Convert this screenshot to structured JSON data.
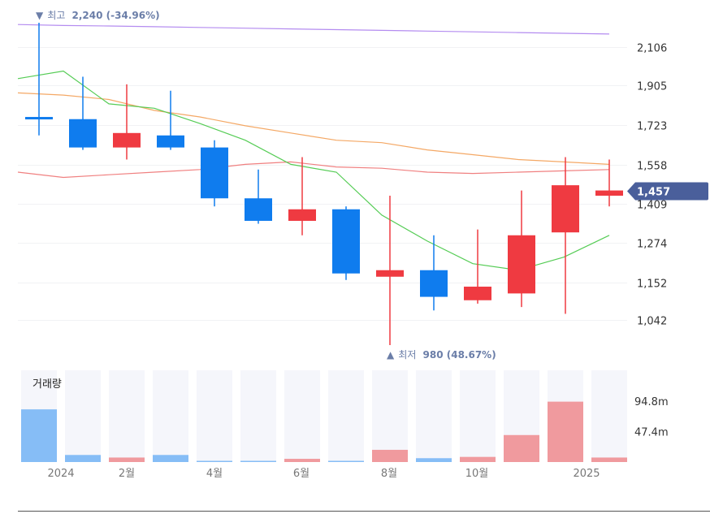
{
  "chart_data": {
    "type": "candlestick",
    "x_labels": [
      "2024",
      "2월",
      "4월",
      "6월",
      "8월",
      "10월",
      "2025"
    ],
    "y_ticks": [
      "2,106",
      "1,905",
      "1,723",
      "1,558",
      "1,409",
      "1,274",
      "1,152",
      "1,042"
    ],
    "y_tick_values": [
      2106,
      1905,
      1723,
      1558,
      1409,
      1274,
      1152,
      1042
    ],
    "volume_ticks": [
      "94.8m",
      "47.4m"
    ],
    "volume_tick_values": [
      94.8,
      47.4
    ],
    "volume_unit": "m",
    "volume_title": "거래량",
    "high_annotation": {
      "prefix": "▼",
      "label": "최고",
      "value": "2,240 (-34.96%)",
      "price": 2240
    },
    "low_annotation": {
      "prefix": "▲",
      "label": "최저",
      "value": "980 (48.67%)",
      "price": 980
    },
    "last_price": {
      "text": "1,457",
      "value": 1457
    },
    "colors": {
      "up": "#ef3a41",
      "down": "#0f7cee",
      "up_volume": "#f09a9e",
      "down_volume": "#86bdf6",
      "ma_green": "#55cc55",
      "ma_orange": "#f4a865",
      "ma_red": "#f08080",
      "ma_purple": "#b48cf0",
      "price_tag": "#4a5f9b",
      "annotation": "#6b7ea8"
    },
    "candles": [
      {
        "open": 1760,
        "high": 2240,
        "low": 1680,
        "close": 1750
      },
      {
        "open": 1750,
        "high": 1950,
        "low": 1620,
        "close": 1630
      },
      {
        "open": 1630,
        "high": 1910,
        "low": 1580,
        "close": 1690
      },
      {
        "open": 1680,
        "high": 1880,
        "low": 1620,
        "close": 1630
      },
      {
        "open": 1630,
        "high": 1660,
        "low": 1400,
        "close": 1430
      },
      {
        "open": 1430,
        "high": 1540,
        "low": 1340,
        "close": 1350
      },
      {
        "open": 1350,
        "high": 1590,
        "low": 1300,
        "close": 1390
      },
      {
        "open": 1390,
        "high": 1400,
        "low": 1160,
        "close": 1180
      },
      {
        "open": 1170,
        "high": 1440,
        "low": 980,
        "close": 1190
      },
      {
        "open": 1190,
        "high": 1300,
        "low": 1070,
        "close": 1110
      },
      {
        "open": 1100,
        "high": 1320,
        "low": 1090,
        "close": 1140
      },
      {
        "open": 1120,
        "high": 1460,
        "low": 1080,
        "close": 1300
      },
      {
        "open": 1310,
        "high": 1590,
        "low": 1060,
        "close": 1480
      },
      {
        "open": 1440,
        "high": 1580,
        "low": 1400,
        "close": 1460
      }
    ],
    "volumes": [
      82,
      11,
      7,
      11,
      1,
      1,
      5,
      1,
      19,
      6,
      8,
      42,
      94,
      7
    ],
    "ma_green": [
      1940,
      1980,
      1820,
      1800,
      1730,
      1660,
      1560,
      1530,
      1370,
      1280,
      1210,
      1190,
      1230,
      1300
    ],
    "ma_orange": [
      1870,
      1860,
      1840,
      1790,
      1760,
      1720,
      1690,
      1660,
      1650,
      1620,
      1600,
      1580,
      1570,
      1560
    ],
    "ma_red": [
      1530,
      1510,
      1520,
      1530,
      1540,
      1560,
      1570,
      1550,
      1545,
      1530,
      1525,
      1530,
      1535,
      1540
    ],
    "ma_purple": [
      2230,
      2225,
      2222,
      2218,
      2214,
      2210,
      2206,
      2202,
      2198,
      2194,
      2190,
      2186,
      2182,
      2178
    ]
  }
}
